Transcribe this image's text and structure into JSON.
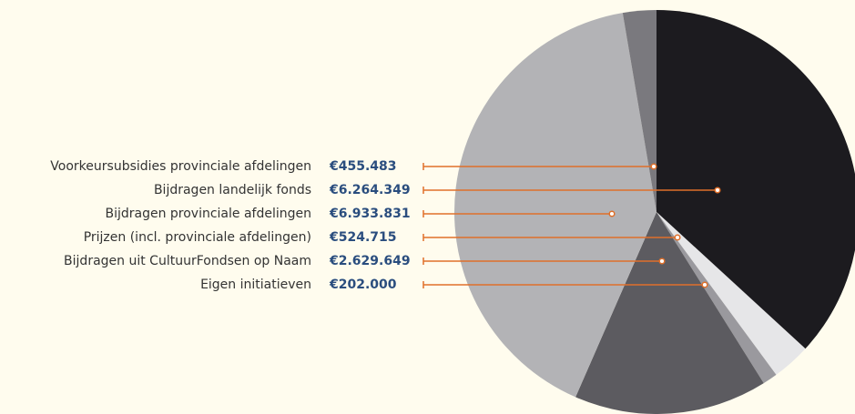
{
  "chart_data": {
    "type": "pie",
    "categories": [
      "Voorkeursubsidies provinciale afdelingen",
      "Bijdragen landelijk fonds",
      "Bijdragen provinciale afdelingen",
      "Prijzen (incl. provinciale afdelingen)",
      "Bijdragen uit CultuurFondsen op Naam",
      "Eigen initiatieven"
    ],
    "values": [
      455483,
      6264349,
      6933831,
      524715,
      2629649,
      202000
    ],
    "value_labels": [
      "€455.483",
      "€6.264.349",
      "€6.933.831",
      "€524.715",
      "€2.629.649",
      "€202.000"
    ],
    "colors": [
      "#7a797e",
      "#1c1b1f",
      "#b3b3b6",
      "#e6e6e8",
      "#5c5b60",
      "#9a999e"
    ]
  }
}
